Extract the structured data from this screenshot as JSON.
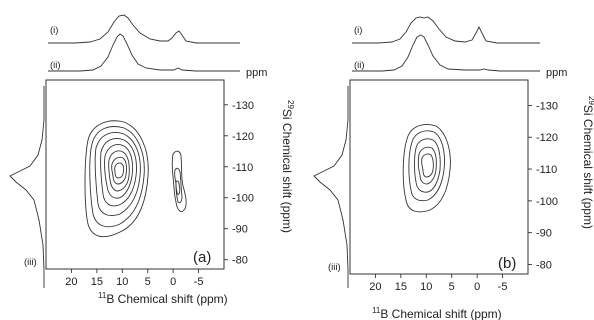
{
  "chart_data": [
    {
      "type": "contour",
      "panel_label": "(a)",
      "xlabel_iso": "11",
      "xlabel": "B Chemical shift (ppm)",
      "ylabel_iso": "29",
      "ylabel": "Si Chemical shift (ppm)",
      "y_unit_label": "ppm",
      "x_ticks": [
        20,
        15,
        10,
        5,
        0,
        -5
      ],
      "y_ticks": [
        -130,
        -120,
        -110,
        -100,
        -90,
        -80
      ],
      "xlim": [
        25,
        -10
      ],
      "ylim": [
        -138,
        -77
      ],
      "projections": [
        "(i)",
        "(ii)",
        "(iii)"
      ],
      "peaks": [
        {
          "x_ppm": 11,
          "y_ppm": -108,
          "levels": 8
        },
        {
          "x_ppm": 0,
          "y_ppm": -104,
          "levels": 3
        }
      ]
    },
    {
      "type": "contour",
      "panel_label": "(b)",
      "xlabel_iso": "11",
      "xlabel": "B Chemical shift (ppm)",
      "ylabel_iso": "29",
      "ylabel": "Si Chemical shift  (ppm)",
      "y_unit_label": "ppm",
      "x_ticks": [
        20,
        15,
        10,
        5,
        0,
        -5
      ],
      "y_ticks": [
        -130,
        -120,
        -110,
        -100,
        -90,
        -80
      ],
      "xlim": [
        25,
        -10
      ],
      "ylim": [
        -138,
        -77
      ],
      "projections": [
        "(i)",
        "(ii)",
        "(iii)"
      ],
      "peaks": [
        {
          "x_ppm": 10,
          "y_ppm": -110,
          "levels": 5
        }
      ]
    }
  ]
}
